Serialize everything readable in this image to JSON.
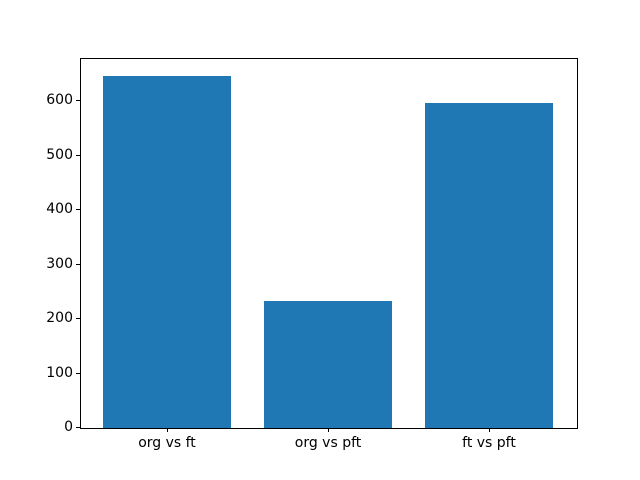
{
  "figure": {
    "background": "#ffffff",
    "spine_color": "#000000",
    "tick_color": "#000000",
    "text_color": "#000000"
  },
  "chart_data": {
    "type": "bar",
    "title": "",
    "xlabel": "",
    "ylabel": "",
    "categories": [
      "org vs ft",
      "org vs pft",
      "ft vs pft"
    ],
    "values": [
      646,
      233,
      597
    ],
    "x": [
      0,
      1,
      2
    ],
    "bar_width": 0.8,
    "xlim": [
      -0.54,
      2.54
    ],
    "ylim": [
      0,
      678
    ],
    "yticks": [
      0,
      100,
      200,
      300,
      400,
      500,
      600
    ],
    "bar_color": "#1f77b4",
    "grid": false,
    "legend": null
  }
}
